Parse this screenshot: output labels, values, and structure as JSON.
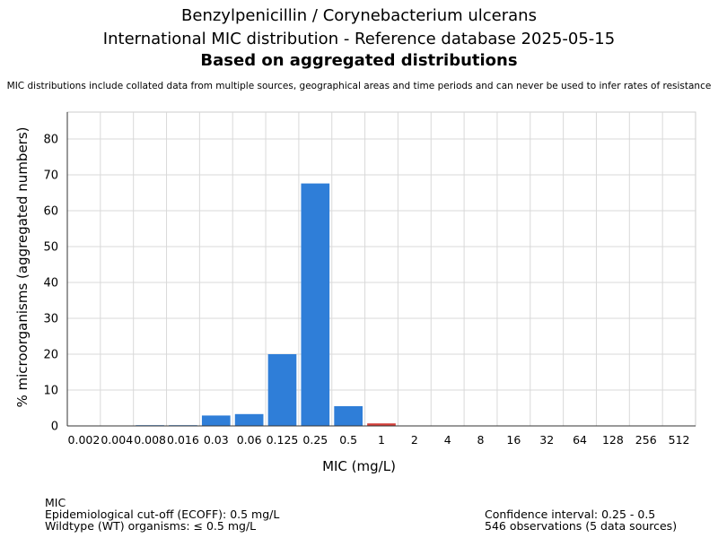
{
  "chart_data": {
    "type": "bar",
    "title": "Benzylpenicillin / Corynebacterium ulcerans",
    "subtitle": "International MIC distribution - Reference database 2025-05-15",
    "subtitle2": "Based on aggregated distributions",
    "note": "MIC distributions include collated data from multiple sources, geographical areas and time periods and can never be used to infer rates of resistance",
    "xlabel": "MIC (mg/L)",
    "ylabel": "% microorganisms (aggregated numbers)",
    "categories": [
      "0.002",
      "0.004",
      "0.008",
      "0.016",
      "0.03",
      "0.06",
      "0.125",
      "0.25",
      "0.5",
      "1",
      "2",
      "4",
      "8",
      "16",
      "32",
      "64",
      "128",
      "256",
      "512"
    ],
    "values": [
      0,
      0,
      0.2,
      0.2,
      2.9,
      3.3,
      20.0,
      67.6,
      5.5,
      0.7,
      0,
      0,
      0,
      0,
      0,
      0,
      0,
      0,
      0
    ],
    "bar_colors": [
      "#2f7ed8",
      "#2f7ed8",
      "#2f7ed8",
      "#2f7ed8",
      "#2f7ed8",
      "#2f7ed8",
      "#2f7ed8",
      "#2f7ed8",
      "#2f7ed8",
      "#d43f3a",
      "#2f7ed8",
      "#2f7ed8",
      "#2f7ed8",
      "#2f7ed8",
      "#2f7ed8",
      "#2f7ed8",
      "#2f7ed8",
      "#2f7ed8",
      "#2f7ed8"
    ],
    "yticks": [
      0,
      10,
      20,
      30,
      40,
      50,
      60,
      70,
      80
    ],
    "ylim": [
      0,
      87.5
    ],
    "grid": true,
    "legend": "none"
  },
  "footer": {
    "left": [
      "MIC",
      "Epidemiological cut-off (ECOFF): 0.5 mg/L",
      "Wildtype (WT) organisms: ≤ 0.5 mg/L"
    ],
    "right": [
      "Confidence interval: 0.25 - 0.5",
      "546 observations (5 data sources)"
    ]
  }
}
